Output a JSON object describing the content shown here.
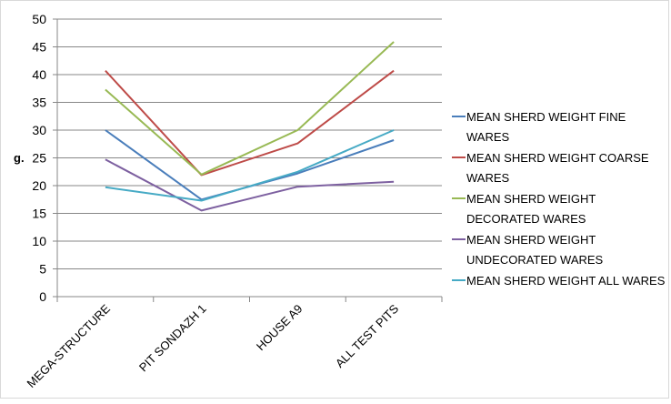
{
  "chart_data": {
    "type": "line",
    "title": "",
    "xlabel": "",
    "ylabel": "g.",
    "categories": [
      "MEGA-STRUCTURE",
      "PIT SONDAZH 1",
      "HOUSE A9",
      "ALL TEST PITS"
    ],
    "ylim": [
      0,
      50
    ],
    "ytick_step": 5,
    "grid": true,
    "legend_position": "right",
    "series": [
      {
        "name": "MEAN SHERD WEIGHT FINE WARES",
        "legend_lines": [
          "MEAN SHERD WEIGHT FINE",
          "WARES"
        ],
        "color": "#4a7ebb",
        "values": [
          30.0,
          17.5,
          22.2,
          28.2
        ]
      },
      {
        "name": "MEAN SHERD WEIGHT COARSE WARES",
        "legend_lines": [
          "MEAN SHERD WEIGHT COARSE",
          "WARES"
        ],
        "color": "#be4b48",
        "values": [
          40.7,
          21.9,
          27.6,
          40.7
        ]
      },
      {
        "name": "MEAN SHERD WEIGHT DECORATED WARES",
        "legend_lines": [
          "MEAN SHERD WEIGHT",
          "DECORATED WARES"
        ],
        "color": "#98b954",
        "values": [
          37.3,
          22.0,
          30.0,
          45.9
        ]
      },
      {
        "name": "MEAN SHERD WEIGHT UNDECORATED WARES",
        "legend_lines": [
          "MEAN SHERD WEIGHT",
          "UNDECORATED WARES"
        ],
        "color": "#7d60a0",
        "values": [
          24.7,
          15.5,
          19.8,
          20.7
        ]
      },
      {
        "name": "MEAN SHERD WEIGHT ALL WARES",
        "legend_lines": [
          "MEAN SHERD WEIGHT ALL WARES"
        ],
        "color": "#46aac5",
        "values": [
          19.7,
          17.3,
          22.5,
          30.0
        ]
      }
    ]
  }
}
